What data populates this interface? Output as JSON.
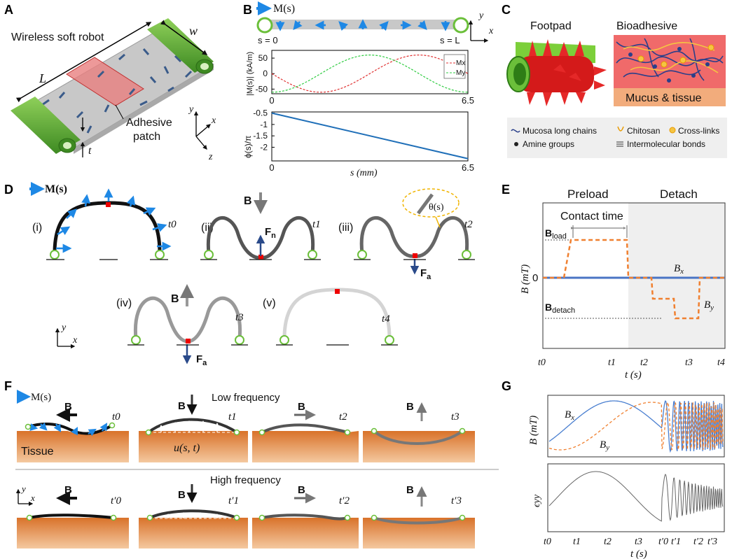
{
  "panels": {
    "A": {
      "letter": "A",
      "title": "Wireless soft robot",
      "width_label": "w",
      "length_label": "L",
      "thickness_label": "t",
      "patch_label_1": "Adhesive",
      "patch_label_2": "patch",
      "axis_x": "x",
      "axis_y": "y",
      "axis_z": "z"
    },
    "B": {
      "letter": "B",
      "mag_legend": "M(s)",
      "s0": "s = 0",
      "sL": "s = L",
      "axis_x": "x",
      "axis_y": "y"
    },
    "C": {
      "letter": "C",
      "footpad": "Footpad",
      "bioadhesive": "Bioadhesive",
      "mucus": "Mucus & tissue",
      "legend": {
        "mucosa": "Mucosa long chains",
        "amine": "Amine groups",
        "chitosan": "Chitosan",
        "crosslinks": "Cross-links",
        "bonds": "Intermolecular bonds"
      }
    },
    "D": {
      "letter": "D",
      "mag_legend": "M(s)",
      "stages": [
        "(i)",
        "(ii)",
        "(iii)",
        "(iv)",
        "(v)"
      ],
      "times": [
        "t0",
        "t1",
        "t2",
        "t3",
        "t4"
      ],
      "B_label": "B",
      "Fn": "F",
      "Fn_sub": "n",
      "Fa": "F",
      "Fa_sub": "a",
      "theta": "θ(s)",
      "axis_x": "x",
      "axis_y": "y"
    },
    "E": {
      "letter": "E",
      "preload": "Preload",
      "detach": "Detach",
      "contact_time": "Contact time",
      "B_load": "B",
      "B_load_sub": "load",
      "B_detach": "B",
      "B_detach_sub": "detach",
      "Bx": "B",
      "Bx_sub": "x",
      "By": "B",
      "By_sub": "y",
      "ylabel": "B (mT)",
      "xlabel": "t (s)",
      "zero": "0",
      "ticks": [
        "t0",
        "t1",
        "t2",
        "t3",
        "t4"
      ]
    },
    "F": {
      "letter": "F",
      "mag_legend": "M(s)",
      "low": "Low frequency",
      "high": "High frequency",
      "tissue": "Tissue",
      "u_label": "u(s, t)",
      "B_label": "B",
      "times_low": [
        "t0",
        "t1",
        "t2",
        "t3"
      ],
      "times_high": [
        "t′0",
        "t′1",
        "t′2",
        "t′3"
      ],
      "axis_x": "x",
      "axis_y": "y"
    },
    "G": {
      "letter": "G",
      "ylabel_top": "B (mT)",
      "ylabel_bottom": "ϵyy",
      "xlabel": "t (s)",
      "Bx": "B",
      "Bx_sub": "x",
      "By": "B",
      "By_sub": "y",
      "ticks": [
        "t0",
        "t1",
        "t2",
        "t3",
        "t′0",
        "t′1",
        "t′2",
        "t′3"
      ]
    }
  },
  "chart_data": [
    {
      "type": "line",
      "panel": "B-top",
      "ylabel": "|M(s)| (kA/m)",
      "xlim": [
        0,
        6.5
      ],
      "ylim": [
        -65,
        75
      ],
      "x_ticks": [
        0,
        6.5
      ],
      "y_ticks": [
        50,
        0,
        -50
      ],
      "series": [
        {
          "name": "Mx",
          "color": "#e03030",
          "dash": true,
          "function": "-60*sin(2*pi*s/6.5)"
        },
        {
          "name": "My",
          "color": "#2ecc40",
          "dash": true,
          "function": "-60*cos(2*pi*s/6.5)"
        }
      ]
    },
    {
      "type": "line",
      "panel": "B-bottom",
      "ylabel": "ϕ(s)/π",
      "xlabel": "s (mm)",
      "xlim": [
        0,
        6.5
      ],
      "ylim": [
        -2.6,
        -0.45
      ],
      "x_ticks": [
        0,
        6.5
      ],
      "y_ticks": [
        -0.5,
        -1,
        -1.5,
        -2
      ],
      "series": [
        {
          "name": "phi",
          "color": "#1f6fb8",
          "x": [
            0,
            6.5
          ],
          "y": [
            -0.5,
            -2.5
          ]
        }
      ]
    }
  ]
}
